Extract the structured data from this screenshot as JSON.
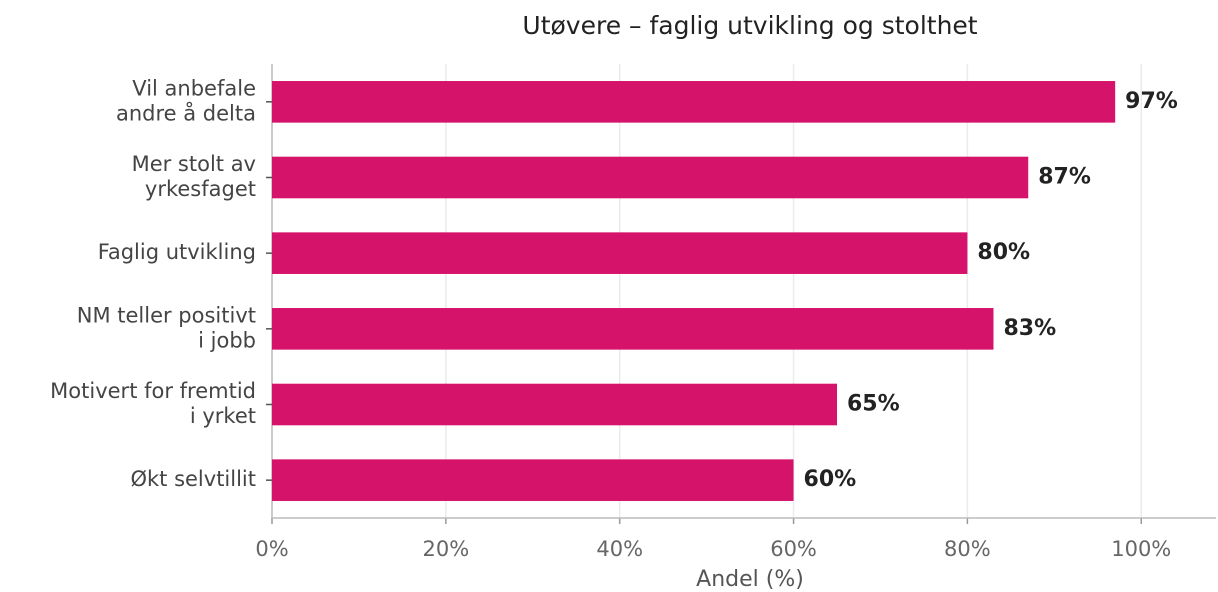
{
  "chart_data": {
    "type": "barh",
    "title": "Utøvere – faglig utvikling og stolthet",
    "xlabel": "Andel (%)",
    "categories": [
      "Vil anbefale\nandre å delta",
      "Mer stolt av\nyrkesfaget",
      "Faglig utvikling",
      "NM teller positivt\ni jobb",
      "Motivert for fremtid\ni yrket",
      "Økt selvtillit"
    ],
    "values": [
      97,
      87,
      80,
      83,
      65,
      60
    ],
    "value_labels": [
      "97%",
      "87%",
      "80%",
      "83%",
      "65%",
      "60%"
    ],
    "color": "#d6136a",
    "xlim": [
      0,
      108.6
    ],
    "xticks": [
      {
        "value": 0,
        "label": "0%"
      },
      {
        "value": 20,
        "label": "20%"
      },
      {
        "value": 40,
        "label": "40%"
      },
      {
        "value": 60,
        "label": "60%"
      },
      {
        "value": 80,
        "label": "80%"
      },
      {
        "value": 100,
        "label": "100%"
      }
    ],
    "grid": true
  }
}
